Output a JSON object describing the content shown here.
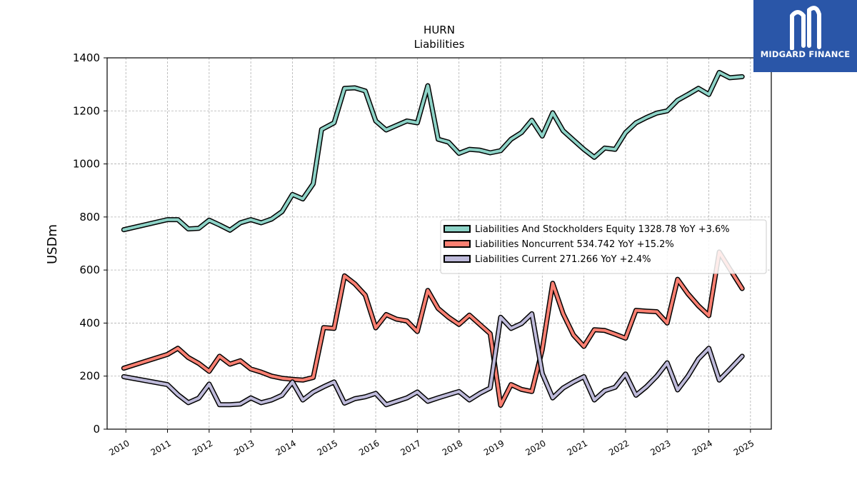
{
  "logo": {
    "text": "MIDGARD FINANCE"
  },
  "chart_data": {
    "type": "line",
    "title": "HURN",
    "subtitle": "Liabilities",
    "ylabel": "USDm",
    "xlabel": "",
    "ylim": [
      0,
      1400
    ],
    "xlim": [
      2009.55,
      2025.5
    ],
    "yticks": [
      0,
      200,
      400,
      600,
      800,
      1000,
      1200,
      1400
    ],
    "xticks": [
      2010,
      2011,
      2012,
      2013,
      2014,
      2015,
      2016,
      2017,
      2018,
      2019,
      2020,
      2021,
      2022,
      2023,
      2024,
      2025
    ],
    "grid": true,
    "legend_position": "center-right",
    "series": [
      {
        "name": "Liabilities And Stockholders Equity",
        "legend_label": "Liabilities And Stockholders Equity  1328.78 YoY +3.6%",
        "color": "#8dd3c7",
        "points": [
          [
            2009.95,
            752
          ],
          [
            2011.0,
            790
          ],
          [
            2011.25,
            790
          ],
          [
            2011.5,
            755
          ],
          [
            2011.75,
            757
          ],
          [
            2012.0,
            788
          ],
          [
            2012.25,
            770
          ],
          [
            2012.5,
            750
          ],
          [
            2012.75,
            778
          ],
          [
            2013.0,
            790
          ],
          [
            2013.25,
            778
          ],
          [
            2013.5,
            792
          ],
          [
            2013.75,
            820
          ],
          [
            2014.0,
            885
          ],
          [
            2014.25,
            868
          ],
          [
            2014.5,
            925
          ],
          [
            2014.7,
            1130
          ],
          [
            2015.0,
            1155
          ],
          [
            2015.25,
            1285
          ],
          [
            2015.5,
            1287
          ],
          [
            2015.75,
            1275
          ],
          [
            2016.0,
            1162
          ],
          [
            2016.25,
            1128
          ],
          [
            2016.5,
            1145
          ],
          [
            2016.75,
            1162
          ],
          [
            2017.0,
            1155
          ],
          [
            2017.25,
            1295
          ],
          [
            2017.5,
            1093
          ],
          [
            2017.75,
            1082
          ],
          [
            2018.0,
            1040
          ],
          [
            2018.25,
            1055
          ],
          [
            2018.5,
            1052
          ],
          [
            2018.75,
            1042
          ],
          [
            2019.0,
            1050
          ],
          [
            2019.25,
            1093
          ],
          [
            2019.5,
            1118
          ],
          [
            2019.75,
            1165
          ],
          [
            2020.0,
            1105
          ],
          [
            2020.25,
            1193
          ],
          [
            2020.5,
            1125
          ],
          [
            2020.75,
            1090
          ],
          [
            2021.0,
            1055
          ],
          [
            2021.25,
            1025
          ],
          [
            2021.5,
            1060
          ],
          [
            2021.75,
            1055
          ],
          [
            2022.0,
            1118
          ],
          [
            2022.25,
            1155
          ],
          [
            2022.5,
            1175
          ],
          [
            2022.75,
            1192
          ],
          [
            2023.0,
            1200
          ],
          [
            2023.25,
            1240
          ],
          [
            2023.5,
            1262
          ],
          [
            2023.75,
            1285
          ],
          [
            2024.0,
            1262
          ],
          [
            2024.25,
            1345
          ],
          [
            2024.5,
            1325
          ],
          [
            2024.8,
            1329
          ]
        ]
      },
      {
        "name": "Liabilities Noncurrent",
        "legend_label": "Liabilities Noncurrent  534.742 YoY +15.2%",
        "color": "#fb8072",
        "points": [
          [
            2009.95,
            230
          ],
          [
            2011.0,
            282
          ],
          [
            2011.25,
            305
          ],
          [
            2011.5,
            270
          ],
          [
            2011.75,
            248
          ],
          [
            2012.0,
            218
          ],
          [
            2012.25,
            275
          ],
          [
            2012.5,
            245
          ],
          [
            2012.75,
            258
          ],
          [
            2013.0,
            227
          ],
          [
            2013.25,
            215
          ],
          [
            2013.5,
            200
          ],
          [
            2013.75,
            192
          ],
          [
            2014.0,
            188
          ],
          [
            2014.25,
            185
          ],
          [
            2014.5,
            195
          ],
          [
            2014.75,
            383
          ],
          [
            2015.0,
            380
          ],
          [
            2015.25,
            578
          ],
          [
            2015.5,
            548
          ],
          [
            2015.75,
            505
          ],
          [
            2016.0,
            382
          ],
          [
            2016.25,
            432
          ],
          [
            2016.5,
            415
          ],
          [
            2016.75,
            408
          ],
          [
            2017.0,
            368
          ],
          [
            2017.25,
            523
          ],
          [
            2017.5,
            455
          ],
          [
            2017.75,
            422
          ],
          [
            2018.0,
            395
          ],
          [
            2018.25,
            430
          ],
          [
            2018.5,
            395
          ],
          [
            2018.75,
            360
          ],
          [
            2019.0,
            90
          ],
          [
            2019.25,
            168
          ],
          [
            2019.5,
            150
          ],
          [
            2019.75,
            142
          ],
          [
            2020.0,
            300
          ],
          [
            2020.25,
            550
          ],
          [
            2020.5,
            435
          ],
          [
            2020.75,
            355
          ],
          [
            2021.0,
            312
          ],
          [
            2021.25,
            375
          ],
          [
            2021.5,
            372
          ],
          [
            2021.75,
            358
          ],
          [
            2022.0,
            343
          ],
          [
            2022.25,
            448
          ],
          [
            2022.5,
            445
          ],
          [
            2022.75,
            443
          ],
          [
            2023.0,
            400
          ],
          [
            2023.25,
            565
          ],
          [
            2023.5,
            510
          ],
          [
            2023.75,
            465
          ],
          [
            2024.0,
            428
          ],
          [
            2024.25,
            668
          ],
          [
            2024.5,
            605
          ],
          [
            2024.8,
            530
          ]
        ]
      },
      {
        "name": "Liabilities Current",
        "legend_label": "Liabilities Current  271.266 YoY +2.4%",
        "color": "#bebada",
        "points": [
          [
            2009.95,
            198
          ],
          [
            2011.0,
            168
          ],
          [
            2011.25,
            130
          ],
          [
            2011.5,
            100
          ],
          [
            2011.75,
            117
          ],
          [
            2012.0,
            170
          ],
          [
            2012.25,
            92
          ],
          [
            2012.5,
            92
          ],
          [
            2012.75,
            95
          ],
          [
            2013.0,
            118
          ],
          [
            2013.25,
            100
          ],
          [
            2013.5,
            110
          ],
          [
            2013.75,
            128
          ],
          [
            2014.0,
            178
          ],
          [
            2014.25,
            110
          ],
          [
            2014.5,
            140
          ],
          [
            2014.75,
            160
          ],
          [
            2015.0,
            178
          ],
          [
            2015.25,
            98
          ],
          [
            2015.5,
            115
          ],
          [
            2015.75,
            122
          ],
          [
            2016.0,
            135
          ],
          [
            2016.25,
            92
          ],
          [
            2016.5,
            105
          ],
          [
            2016.75,
            118
          ],
          [
            2017.0,
            140
          ],
          [
            2017.25,
            105
          ],
          [
            2017.5,
            118
          ],
          [
            2017.75,
            130
          ],
          [
            2018.0,
            142
          ],
          [
            2018.25,
            110
          ],
          [
            2018.5,
            135
          ],
          [
            2018.75,
            155
          ],
          [
            2019.0,
            422
          ],
          [
            2019.25,
            380
          ],
          [
            2019.5,
            398
          ],
          [
            2019.75,
            435
          ],
          [
            2020.0,
            210
          ],
          [
            2020.25,
            118
          ],
          [
            2020.5,
            155
          ],
          [
            2020.75,
            178
          ],
          [
            2021.0,
            198
          ],
          [
            2021.25,
            110
          ],
          [
            2021.5,
            145
          ],
          [
            2021.75,
            158
          ],
          [
            2022.0,
            208
          ],
          [
            2022.25,
            128
          ],
          [
            2022.5,
            160
          ],
          [
            2022.75,
            200
          ],
          [
            2023.0,
            250
          ],
          [
            2023.25,
            148
          ],
          [
            2023.5,
            200
          ],
          [
            2023.75,
            265
          ],
          [
            2024.0,
            305
          ],
          [
            2024.25,
            185
          ],
          [
            2024.5,
            225
          ],
          [
            2024.8,
            275
          ]
        ]
      }
    ]
  }
}
